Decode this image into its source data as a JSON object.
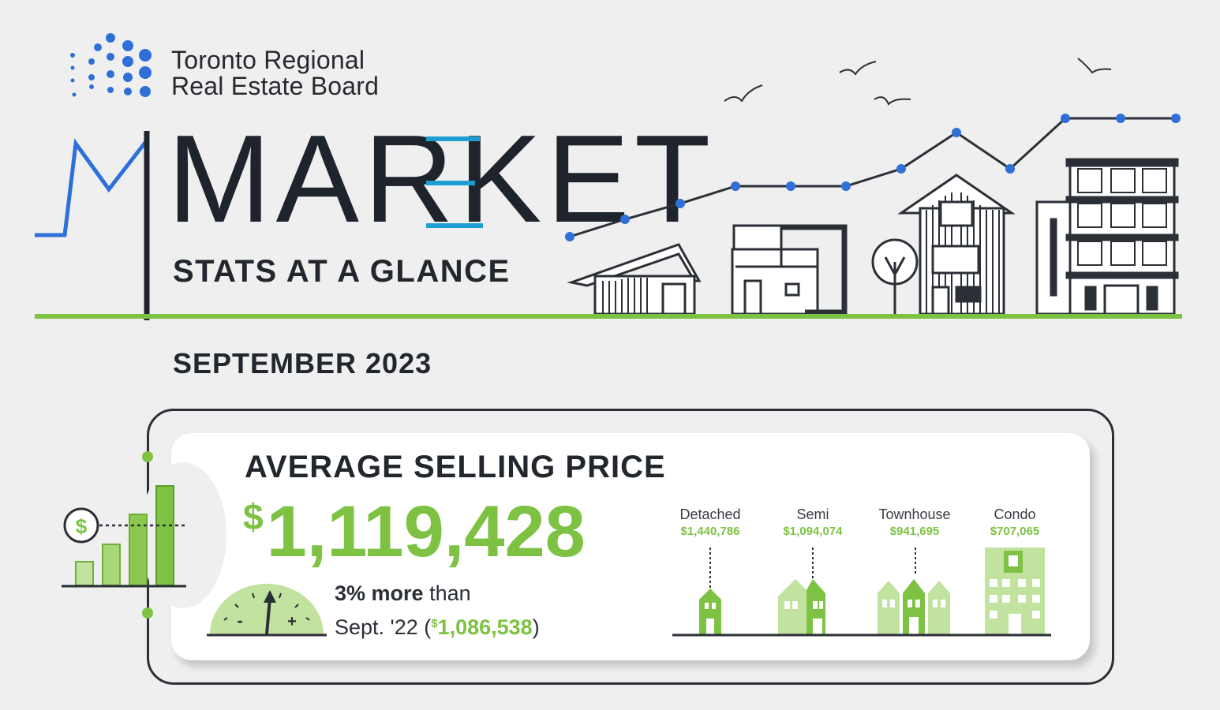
{
  "brand": {
    "line1": "Toronto Regional",
    "line2": "Real Estate Board"
  },
  "header": {
    "title": "MARKET",
    "subtitle": "STATS AT A GLANCE",
    "period": "SEPTEMBER 2023"
  },
  "asp": {
    "title": "AVERAGE SELLING PRICE",
    "currency_symbol": "$",
    "value": "1,119,428",
    "change_pct": "3% more",
    "change_word": "than",
    "comparison_label": "Sept. '22 (",
    "comparison_symbol": "$",
    "comparison_value": "1,086,538",
    "comparison_close": ")",
    "icon_dollar": "$",
    "gauge_minus": "-",
    "gauge_plus": "+"
  },
  "property_types": [
    {
      "label": "Detached",
      "value": "$1,440,786"
    },
    {
      "label": "Semi",
      "value": "$1,094,074"
    },
    {
      "label": "Townhouse",
      "value": "$941,695"
    },
    {
      "label": "Condo",
      "value": "$707,065"
    }
  ],
  "colors": {
    "brand_blue": "#2f6fd8",
    "accent_teal": "#1e9fd3",
    "green": "#7dc243",
    "light_green": "#c2e29f",
    "ink": "#22262d",
    "background": "#efefef"
  },
  "icons": [
    "logo-dots-icon",
    "birds-icon",
    "houses-illustration",
    "trend-line-icon",
    "bar-chart-icon",
    "dollar-icon",
    "gauge-icon",
    "detached-house-icon",
    "semi-house-icon",
    "townhouse-icon",
    "condo-icon"
  ]
}
